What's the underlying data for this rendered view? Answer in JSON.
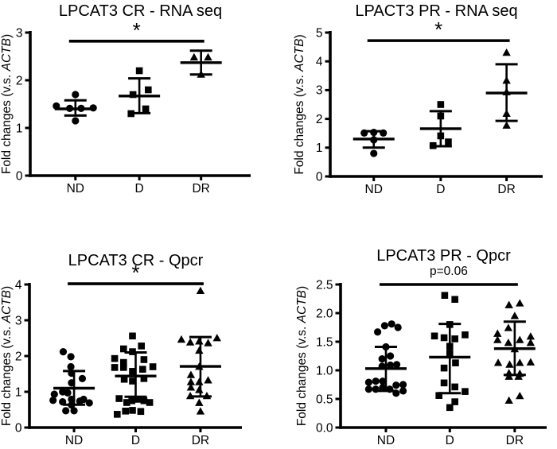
{
  "figure": {
    "background": "#ffffff",
    "ink_color": "#000000",
    "y_axis_label": {
      "prefix": "Fold changes (v.s. ",
      "italic": "ACTB",
      "suffix": ")",
      "full": "Fold changes (v.s. ACTB)"
    }
  },
  "chart_data": [
    {
      "type": "scatter",
      "title": "LPCAT3 CR - RNA seq",
      "xlabel": "",
      "ylabel": "Fold changes (v.s. ACTB)",
      "categories": [
        "ND",
        "D",
        "DR"
      ],
      "ylim": [
        0,
        3
      ],
      "ytick_values": [
        0,
        1,
        2,
        3
      ],
      "ytick_labels": [
        "0",
        "1",
        "2",
        "3"
      ],
      "legend": "none",
      "grid": false,
      "significance": {
        "label": "*",
        "from": "ND",
        "to": "DR",
        "bar_y": 2.82
      },
      "groups": [
        {
          "category": "ND",
          "marker": "circle",
          "mean": 1.4,
          "err_low": 1.26,
          "err_high": 1.58,
          "points": [
            [
              -0.3,
              1.46
            ],
            [
              0,
              1.7
            ],
            [
              -0.09,
              1.41
            ],
            [
              0.09,
              1.41
            ],
            [
              0.28,
              1.42
            ],
            [
              0,
              1.15
            ]
          ]
        },
        {
          "category": "D",
          "marker": "square",
          "mean": 1.67,
          "err_low": 1.31,
          "err_high": 2.04,
          "points": [
            [
              0,
              2.2
            ],
            [
              0.14,
              1.8
            ],
            [
              -0.1,
              1.7
            ],
            [
              0.1,
              1.4
            ],
            [
              -0.13,
              1.3
            ]
          ]
        },
        {
          "category": "DR",
          "marker": "triangle",
          "mean": 2.37,
          "err_low": 2.12,
          "err_high": 2.62,
          "points": [
            [
              -0.11,
              2.48
            ],
            [
              0.11,
              2.48
            ],
            [
              0,
              2.12
            ]
          ]
        }
      ]
    },
    {
      "type": "scatter",
      "title": "LPACT3 PR - RNA seq",
      "xlabel": "",
      "ylabel": "Fold changes (v.s. ACTB)",
      "categories": [
        "ND",
        "D",
        "DR"
      ],
      "ylim": [
        0,
        5
      ],
      "ytick_values": [
        0,
        1,
        2,
        3,
        4,
        5
      ],
      "ytick_labels": [
        "0",
        "1",
        "2",
        "3",
        "4",
        "5"
      ],
      "legend": "none",
      "grid": false,
      "significance": {
        "label": "*",
        "from": "ND",
        "to": "DR",
        "bar_y": 4.72
      },
      "groups": [
        {
          "category": "ND",
          "marker": "circle",
          "mean": 1.3,
          "err_low": 1.0,
          "err_high": 1.57,
          "points": [
            [
              -0.15,
              1.51
            ],
            [
              0,
              1.53
            ],
            [
              0.15,
              1.51
            ],
            [
              0,
              1.27
            ],
            [
              0,
              0.8
            ]
          ]
        },
        {
          "category": "D",
          "marker": "square",
          "mean": 1.66,
          "err_low": 1.05,
          "err_high": 2.27,
          "points": [
            [
              0,
              2.5
            ],
            [
              0,
              2.1
            ],
            [
              0,
              1.41
            ],
            [
              0.12,
              1.2
            ],
            [
              -0.12,
              1.07
            ]
          ]
        },
        {
          "category": "DR",
          "marker": "triangle",
          "mean": 2.9,
          "err_low": 1.93,
          "err_high": 3.9,
          "points": [
            [
              0,
              4.3
            ],
            [
              0,
              3.33
            ],
            [
              0,
              2.93
            ],
            [
              0,
              2.18
            ],
            [
              0,
              1.77
            ]
          ]
        }
      ]
    },
    {
      "type": "scatter",
      "title": "LPCAT3 CR - Qpcr",
      "xlabel": "",
      "ylabel": "Fold changes (v.s. ACTB)",
      "categories": [
        "ND",
        "D",
        "DR"
      ],
      "ylim": [
        0,
        4
      ],
      "ytick_values": [
        0,
        1,
        2,
        3,
        4
      ],
      "ytick_labels": [
        "0",
        "1",
        "2",
        "3",
        "4"
      ],
      "legend": "none",
      "grid": false,
      "significance": {
        "label": "*",
        "from": "ND",
        "to": "DR",
        "bar_y": 4.02
      },
      "groups": [
        {
          "category": "ND",
          "marker": "circle",
          "mean": 1.1,
          "err_low": 0.64,
          "err_high": 1.58,
          "points": [
            [
              -0.17,
              2.12
            ],
            [
              -0.05,
              1.98
            ],
            [
              -0.05,
              1.7
            ],
            [
              -0.04,
              1.52
            ],
            [
              0.13,
              1.37
            ],
            [
              -0.04,
              1.25
            ],
            [
              -0.18,
              1.0
            ],
            [
              -0.31,
              0.93
            ],
            [
              -0.1,
              0.97
            ],
            [
              -0.33,
              0.76
            ],
            [
              -0.18,
              0.72
            ],
            [
              -0.04,
              0.79
            ],
            [
              0.09,
              0.74
            ],
            [
              0.15,
              0.79
            ],
            [
              0.24,
              0.69
            ],
            [
              -0.04,
              0.63
            ],
            [
              -0.13,
              0.47
            ],
            [
              0,
              0.47
            ]
          ]
        },
        {
          "category": "D",
          "marker": "square",
          "mean": 1.44,
          "err_low": 0.86,
          "err_high": 2.1,
          "points": [
            [
              -0.05,
              2.56
            ],
            [
              0.09,
              2.28
            ],
            [
              -0.19,
              2.2
            ],
            [
              -0.05,
              2.12
            ],
            [
              -0.33,
              1.93
            ],
            [
              0.13,
              1.9
            ],
            [
              -0.19,
              1.82
            ],
            [
              0.27,
              1.7
            ],
            [
              -0.33,
              1.68
            ],
            [
              -0.19,
              1.68
            ],
            [
              0.11,
              1.63
            ],
            [
              -0.05,
              1.57
            ],
            [
              -0.18,
              1.35
            ],
            [
              0.13,
              1.37
            ],
            [
              -0.05,
              1.3
            ],
            [
              -0.26,
              0.81
            ],
            [
              -0.14,
              0.7
            ],
            [
              -0.06,
              0.75
            ],
            [
              0.03,
              0.79
            ],
            [
              0.13,
              0.75
            ],
            [
              0.22,
              0.7
            ],
            [
              -0.16,
              0.46
            ],
            [
              -0.05,
              0.48
            ],
            [
              0.08,
              0.45
            ],
            [
              -0.29,
              0.37
            ]
          ]
        },
        {
          "category": "DR",
          "marker": "triangle",
          "mean": 1.71,
          "err_low": 0.87,
          "err_high": 2.53,
          "points": [
            [
              0,
              3.82
            ],
            [
              -0.3,
              2.46
            ],
            [
              -0.16,
              2.38
            ],
            [
              -0.02,
              2.41
            ],
            [
              0.12,
              2.36
            ],
            [
              0.26,
              2.5
            ],
            [
              -0.02,
              2.15
            ],
            [
              -0.02,
              1.7
            ],
            [
              -0.15,
              1.47
            ],
            [
              -0.15,
              1.27
            ],
            [
              -0.02,
              1.27
            ],
            [
              0.12,
              1.32
            ],
            [
              -0.15,
              1.12
            ],
            [
              -0.02,
              1.05
            ],
            [
              -0.16,
              0.88
            ],
            [
              0.1,
              0.88
            ],
            [
              -0.02,
              0.69
            ],
            [
              0,
              0.45
            ]
          ]
        }
      ]
    },
    {
      "type": "scatter",
      "title": "LPCAT3 PR - Qpcr",
      "xlabel": "",
      "ylabel": "Fold changes (v.s. ACTB)",
      "categories": [
        "ND",
        "D",
        "DR"
      ],
      "ylim": [
        0,
        2.5
      ],
      "ytick_values": [
        0,
        0.5,
        1,
        1.5,
        2,
        2.5
      ],
      "ytick_labels": [
        "0.0",
        "0.5",
        "1.0",
        "1.5",
        "2.0",
        "2.5"
      ],
      "legend": "none",
      "grid": false,
      "significance": {
        "label": "p=0.06",
        "from": "ND",
        "to": "DR",
        "bar_y": 2.5
      },
      "groups": [
        {
          "category": "ND",
          "marker": "circle",
          "mean": 1.03,
          "err_low": 0.64,
          "err_high": 1.41,
          "points": [
            [
              -0.13,
              1.67
            ],
            [
              -0.02,
              1.78
            ],
            [
              0.09,
              1.81
            ],
            [
              0.19,
              1.75
            ],
            [
              0,
              1.41
            ],
            [
              -0.06,
              1.2
            ],
            [
              0.07,
              1.25
            ],
            [
              -0.06,
              1.07
            ],
            [
              0.07,
              1.09
            ],
            [
              0.17,
              1.1
            ],
            [
              -0.27,
              0.79
            ],
            [
              -0.16,
              0.81
            ],
            [
              -0.05,
              0.81
            ],
            [
              0.16,
              0.74
            ],
            [
              0.27,
              0.75
            ],
            [
              -0.27,
              0.67
            ],
            [
              -0.16,
              0.67
            ],
            [
              -0.05,
              0.7
            ],
            [
              0.06,
              0.67
            ],
            [
              0.16,
              0.6
            ],
            [
              0.27,
              0.64
            ]
          ]
        },
        {
          "category": "D",
          "marker": "square",
          "mean": 1.23,
          "err_low": 0.6,
          "err_high": 1.81,
          "points": [
            [
              -0.08,
              2.31
            ],
            [
              0.08,
              2.24
            ],
            [
              0,
              1.8
            ],
            [
              -0.24,
              1.6
            ],
            [
              -0.09,
              1.57
            ],
            [
              0.08,
              1.55
            ],
            [
              0.24,
              1.62
            ],
            [
              0,
              1.42
            ],
            [
              0,
              1.3
            ],
            [
              0.09,
              1.13
            ],
            [
              -0.09,
              1.04
            ],
            [
              -0.09,
              0.78
            ],
            [
              0.08,
              0.71
            ],
            [
              -0.17,
              0.56
            ],
            [
              0.24,
              0.63
            ],
            [
              0.08,
              0.45
            ],
            [
              0,
              0.35
            ]
          ]
        },
        {
          "category": "DR",
          "marker": "triangle",
          "mean": 1.38,
          "err_low": 0.92,
          "err_high": 1.85,
          "points": [
            [
              -0.09,
              2.14
            ],
            [
              0.08,
              2.17
            ],
            [
              0,
              1.95
            ],
            [
              -0.1,
              1.74
            ],
            [
              -0.27,
              1.64
            ],
            [
              -0.27,
              1.53
            ],
            [
              -0.1,
              1.48
            ],
            [
              0.08,
              1.53
            ],
            [
              0.25,
              1.59
            ],
            [
              0.25,
              1.48
            ],
            [
              0,
              1.37
            ],
            [
              -0.26,
              1.13
            ],
            [
              -0.08,
              1.1
            ],
            [
              0.08,
              1.13
            ],
            [
              0.25,
              1.14
            ],
            [
              -0.09,
              0.95
            ],
            [
              0.08,
              0.94
            ],
            [
              -0.09,
              0.89
            ],
            [
              0.06,
              0.89
            ],
            [
              0.08,
              0.55
            ],
            [
              -0.09,
              0.47
            ]
          ]
        }
      ]
    }
  ]
}
